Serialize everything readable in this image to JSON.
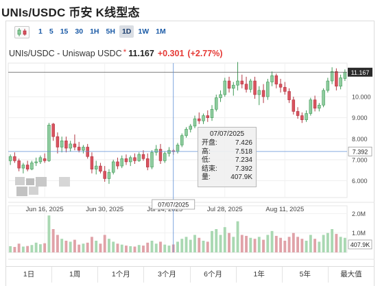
{
  "page_title": "UNIs/USDC 币安 K线型态",
  "toolbar": {
    "chart_type_icon": "candlestick-icon",
    "intervals": [
      "1",
      "5",
      "15",
      "30",
      "1H",
      "5H",
      "1D",
      "1W",
      "1M"
    ],
    "active_interval": "1D"
  },
  "symbol": {
    "name": "UNIs/USDC - Uniswap USDC",
    "star": "*",
    "price": "11.167",
    "change": "+0.301",
    "change_pct": "(+2.77%)"
  },
  "tooltip": {
    "date": "07/07/2025",
    "rows": [
      {
        "label": "开盘:",
        "value": "7.426"
      },
      {
        "label": "高:",
        "value": "7.518"
      },
      {
        "label": "低:",
        "value": "7.234"
      },
      {
        "label": "结束:",
        "value": "7.392"
      },
      {
        "label": "量:",
        "value": "407.9K"
      }
    ]
  },
  "crosshair": {
    "date_label": "07/07/2025",
    "price_label": "7.392",
    "volume_label": "407.9K"
  },
  "last_price_label": "11.167",
  "ranges": [
    "1日",
    "1周",
    "1个月",
    "3个月",
    "6个月",
    "1年",
    "5年",
    "最大值"
  ],
  "colors": {
    "up": "#8fcc9f",
    "up_stroke": "#3f9a56",
    "down": "#d9535f",
    "down_stroke": "#b23440",
    "vol_up": "#a9d8b2",
    "vol_down": "#e0a2a8",
    "crosshair": "#5d8fd6",
    "accent_red": "#e53935"
  },
  "chart_data": {
    "type": "candlestick",
    "title": "UNIs/USDC - Uniswap USDC",
    "interval": "1D",
    "x_tick_labels": [
      "Jun 16, 2025",
      "Jun 30, 2025",
      "Jul 14, 2025",
      "Jul 28, 2025",
      "Aug 11, 2025"
    ],
    "y_tick_labels": [
      "6.000",
      "7.000",
      "8.000",
      "9.000",
      "10.000"
    ],
    "ylim": [
      5.2,
      11.6
    ],
    "volume_tick_labels": [
      "2.0M",
      "1.0M"
    ],
    "volume_ylim": [
      0,
      2.4
    ],
    "volume_unit": "M",
    "legend": "none",
    "grid": true,
    "candles": [
      {
        "o": 6.95,
        "h": 7.25,
        "l": 6.75,
        "c": 7.15,
        "v": 0.32
      },
      {
        "o": 7.15,
        "h": 7.35,
        "l": 6.85,
        "c": 6.95,
        "v": 0.28
      },
      {
        "o": 6.95,
        "h": 7.05,
        "l": 6.45,
        "c": 6.6,
        "v": 0.45
      },
      {
        "o": 6.6,
        "h": 6.85,
        "l": 6.35,
        "c": 6.75,
        "v": 0.3
      },
      {
        "o": 6.75,
        "h": 6.95,
        "l": 6.45,
        "c": 6.55,
        "v": 0.33
      },
      {
        "o": 6.55,
        "h": 6.95,
        "l": 6.5,
        "c": 6.85,
        "v": 0.38
      },
      {
        "o": 6.85,
        "h": 7.1,
        "l": 6.7,
        "c": 6.9,
        "v": 0.5
      },
      {
        "o": 6.9,
        "h": 7.2,
        "l": 6.8,
        "c": 7.1,
        "v": 0.42
      },
      {
        "o": 7.05,
        "h": 7.3,
        "l": 6.85,
        "c": 6.95,
        "v": 0.47
      },
      {
        "o": 6.95,
        "h": 8.75,
        "l": 6.9,
        "c": 8.65,
        "v": 1.9
      },
      {
        "o": 8.7,
        "h": 8.75,
        "l": 7.9,
        "c": 8.1,
        "v": 1.2
      },
      {
        "o": 8.1,
        "h": 8.3,
        "l": 7.3,
        "c": 7.6,
        "v": 0.9
      },
      {
        "o": 7.6,
        "h": 8.1,
        "l": 7.35,
        "c": 7.9,
        "v": 0.7
      },
      {
        "o": 7.9,
        "h": 8.1,
        "l": 7.35,
        "c": 7.55,
        "v": 0.6
      },
      {
        "o": 7.55,
        "h": 7.9,
        "l": 7.4,
        "c": 7.75,
        "v": 0.55
      },
      {
        "o": 7.75,
        "h": 8.2,
        "l": 7.45,
        "c": 7.6,
        "v": 0.65
      },
      {
        "o": 7.6,
        "h": 7.85,
        "l": 7.35,
        "c": 7.45,
        "v": 0.4
      },
      {
        "o": 7.45,
        "h": 7.7,
        "l": 7.3,
        "c": 7.6,
        "v": 0.45
      },
      {
        "o": 7.6,
        "h": 7.75,
        "l": 7.05,
        "c": 7.15,
        "v": 0.5
      },
      {
        "o": 7.15,
        "h": 7.35,
        "l": 6.35,
        "c": 6.55,
        "v": 0.8
      },
      {
        "o": 6.55,
        "h": 6.95,
        "l": 6.3,
        "c": 6.7,
        "v": 0.6
      },
      {
        "o": 6.7,
        "h": 6.85,
        "l": 6.35,
        "c": 6.45,
        "v": 0.45
      },
      {
        "o": 6.45,
        "h": 6.7,
        "l": 5.95,
        "c": 6.1,
        "v": 0.9
      },
      {
        "o": 6.1,
        "h": 6.55,
        "l": 5.85,
        "c": 6.4,
        "v": 0.7
      },
      {
        "o": 6.4,
        "h": 7.0,
        "l": 6.3,
        "c": 6.9,
        "v": 0.55
      },
      {
        "o": 6.9,
        "h": 7.1,
        "l": 6.55,
        "c": 6.7,
        "v": 0.45
      },
      {
        "o": 6.7,
        "h": 7.2,
        "l": 6.6,
        "c": 7.05,
        "v": 0.4
      },
      {
        "o": 7.05,
        "h": 7.25,
        "l": 6.75,
        "c": 6.9,
        "v": 0.35
      },
      {
        "o": 6.9,
        "h": 7.2,
        "l": 6.7,
        "c": 7.1,
        "v": 0.32
      },
      {
        "o": 7.1,
        "h": 7.3,
        "l": 6.8,
        "c": 6.95,
        "v": 0.3
      },
      {
        "o": 6.95,
        "h": 7.35,
        "l": 6.9,
        "c": 7.25,
        "v": 0.38
      },
      {
        "o": 7.25,
        "h": 7.45,
        "l": 6.95,
        "c": 7.05,
        "v": 0.35
      },
      {
        "o": 7.05,
        "h": 7.3,
        "l": 6.5,
        "c": 6.65,
        "v": 0.5
      },
      {
        "o": 6.65,
        "h": 7.45,
        "l": 6.55,
        "c": 7.35,
        "v": 0.6
      },
      {
        "o": 7.35,
        "h": 7.7,
        "l": 7.2,
        "c": 7.5,
        "v": 0.45
      },
      {
        "o": 7.5,
        "h": 7.75,
        "l": 6.8,
        "c": 6.95,
        "v": 0.55
      },
      {
        "o": 6.95,
        "h": 7.4,
        "l": 6.85,
        "c": 7.3,
        "v": 0.4
      },
      {
        "o": 7.3,
        "h": 7.6,
        "l": 7.15,
        "c": 7.45,
        "v": 0.35
      },
      {
        "o": 7.426,
        "h": 7.518,
        "l": 7.234,
        "c": 7.392,
        "v": 0.4079
      },
      {
        "o": 7.39,
        "h": 7.8,
        "l": 7.3,
        "c": 7.7,
        "v": 0.55
      },
      {
        "o": 7.7,
        "h": 8.25,
        "l": 7.6,
        "c": 8.15,
        "v": 0.7
      },
      {
        "o": 8.15,
        "h": 8.55,
        "l": 8.05,
        "c": 8.45,
        "v": 0.8
      },
      {
        "o": 8.45,
        "h": 8.7,
        "l": 8.3,
        "c": 8.6,
        "v": 0.65
      },
      {
        "o": 8.6,
        "h": 9.1,
        "l": 8.5,
        "c": 8.95,
        "v": 0.9
      },
      {
        "o": 8.95,
        "h": 9.25,
        "l": 8.7,
        "c": 8.85,
        "v": 0.75
      },
      {
        "o": 8.85,
        "h": 9.2,
        "l": 8.7,
        "c": 9.1,
        "v": 0.6
      },
      {
        "o": 9.1,
        "h": 9.35,
        "l": 8.8,
        "c": 9.0,
        "v": 0.55
      },
      {
        "o": 9.0,
        "h": 9.6,
        "l": 8.85,
        "c": 9.4,
        "v": 1.1
      },
      {
        "o": 9.4,
        "h": 10.1,
        "l": 9.3,
        "c": 9.95,
        "v": 1.2
      },
      {
        "o": 9.95,
        "h": 10.3,
        "l": 9.75,
        "c": 10.1,
        "v": 0.9
      },
      {
        "o": 10.1,
        "h": 10.9,
        "l": 10.0,
        "c": 10.75,
        "v": 1.3
      },
      {
        "o": 10.75,
        "h": 10.95,
        "l": 10.2,
        "c": 10.4,
        "v": 1.0
      },
      {
        "o": 10.4,
        "h": 10.7,
        "l": 10.05,
        "c": 10.55,
        "v": 0.8
      },
      {
        "o": 10.55,
        "h": 11.65,
        "l": 10.3,
        "c": 10.75,
        "v": 1.6
      },
      {
        "o": 10.75,
        "h": 11.05,
        "l": 10.4,
        "c": 10.6,
        "v": 0.9
      },
      {
        "o": 10.6,
        "h": 10.95,
        "l": 10.2,
        "c": 10.35,
        "v": 0.85
      },
      {
        "o": 10.35,
        "h": 10.85,
        "l": 10.2,
        "c": 10.75,
        "v": 0.75
      },
      {
        "o": 10.75,
        "h": 10.95,
        "l": 9.9,
        "c": 10.1,
        "v": 0.7
      },
      {
        "o": 10.1,
        "h": 10.5,
        "l": 9.6,
        "c": 10.3,
        "v": 0.8
      },
      {
        "o": 10.3,
        "h": 10.6,
        "l": 9.7,
        "c": 10.0,
        "v": 0.65
      },
      {
        "o": 10.0,
        "h": 10.85,
        "l": 9.85,
        "c": 10.7,
        "v": 0.9
      },
      {
        "o": 10.7,
        "h": 11.2,
        "l": 10.5,
        "c": 11.0,
        "v": 1.1
      },
      {
        "o": 11.0,
        "h": 11.1,
        "l": 10.4,
        "c": 10.6,
        "v": 0.85
      },
      {
        "o": 10.6,
        "h": 10.85,
        "l": 10.2,
        "c": 10.45,
        "v": 0.75
      },
      {
        "o": 10.45,
        "h": 10.7,
        "l": 10.1,
        "c": 10.25,
        "v": 0.6
      },
      {
        "o": 10.25,
        "h": 10.4,
        "l": 9.7,
        "c": 9.85,
        "v": 0.8
      },
      {
        "o": 9.85,
        "h": 10.0,
        "l": 9.15,
        "c": 9.3,
        "v": 1.0
      },
      {
        "o": 9.3,
        "h": 9.5,
        "l": 8.95,
        "c": 9.1,
        "v": 0.8
      },
      {
        "o": 9.1,
        "h": 9.25,
        "l": 8.75,
        "c": 8.9,
        "v": 0.7
      },
      {
        "o": 8.9,
        "h": 9.35,
        "l": 8.8,
        "c": 9.2,
        "v": 0.6
      },
      {
        "o": 9.2,
        "h": 9.95,
        "l": 9.1,
        "c": 9.85,
        "v": 0.9
      },
      {
        "o": 9.85,
        "h": 10.05,
        "l": 9.3,
        "c": 9.45,
        "v": 0.7
      },
      {
        "o": 9.45,
        "h": 9.7,
        "l": 9.3,
        "c": 9.6,
        "v": 0.55
      },
      {
        "o": 9.6,
        "h": 10.4,
        "l": 9.5,
        "c": 10.3,
        "v": 0.9
      },
      {
        "o": 10.3,
        "h": 10.9,
        "l": 10.2,
        "c": 10.75,
        "v": 1.0
      },
      {
        "o": 10.75,
        "h": 11.4,
        "l": 10.6,
        "c": 11.2,
        "v": 1.2
      },
      {
        "o": 11.2,
        "h": 11.35,
        "l": 10.3,
        "c": 10.5,
        "v": 0.95
      },
      {
        "o": 10.5,
        "h": 11.05,
        "l": 10.35,
        "c": 10.9,
        "v": 0.8
      },
      {
        "o": 10.866,
        "h": 11.3,
        "l": 10.75,
        "c": 11.167,
        "v": 0.75
      }
    ]
  }
}
